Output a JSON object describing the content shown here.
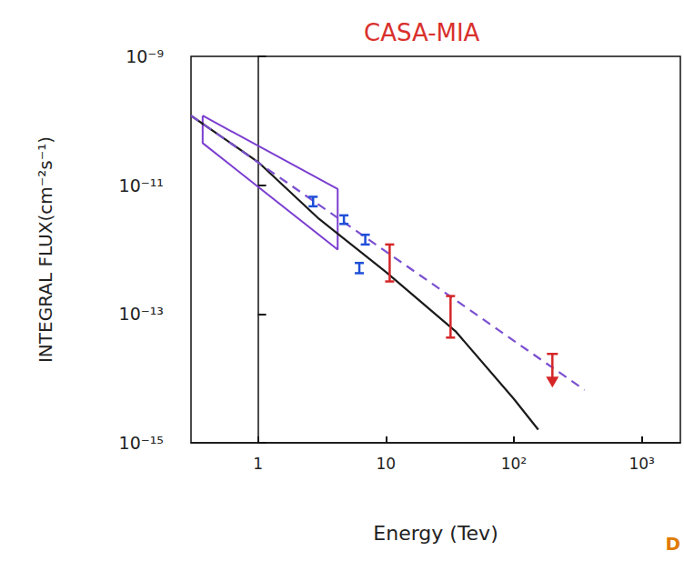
{
  "chart_data": {
    "type": "line",
    "title": "CASA-MIA",
    "x_label": "Energy (Tev)",
    "y_label": "INTEGRAL FLUX(cm⁻²s⁻¹)",
    "log": true,
    "grid": false,
    "xlim": [
      0.3,
      2000
    ],
    "xticks": [
      1,
      10,
      {
        "value": 100,
        "label": "10²"
      },
      {
        "value": 1000,
        "label": "10³"
      }
    ],
    "ylim": [
      1e-15,
      1e-09
    ],
    "yticks": [
      {
        "value": 1e-09,
        "label": "10⁻⁹"
      },
      {
        "value": 1e-11,
        "label": "10⁻¹¹"
      },
      {
        "value": 1e-13,
        "label": "10⁻¹³"
      },
      {
        "value": 1e-15,
        "label": "10⁻¹⁵"
      }
    ],
    "series": [
      {
        "type": "line",
        "color": "#1a1a1a",
        "line_style": "solid",
        "x": [
          0.3,
          1,
          3,
          10,
          35,
          100,
          155
        ],
        "values": [
          1.2e-10,
          2.3e-11,
          3e-12,
          4.5e-13,
          5.4e-14,
          4.8e-15,
          1.6e-15
        ]
      },
      {
        "type": "line",
        "color": "#7b4fd0",
        "line_style": "dashed",
        "x": [
          0.3,
          357
        ],
        "values": [
          1.2e-10,
          6.6e-15
        ]
      },
      {
        "type": "band",
        "color": "#7b3fd0",
        "x": [
          0.37,
          4.2
        ],
        "upper": [
          1.2e-10,
          8.7e-12
        ],
        "lower": [
          4.5e-11,
          1e-12
        ]
      },
      {
        "type": "errorbar",
        "color": "#1f4fd8",
        "x": [
          2.7,
          4.7,
          6.9,
          6.2
        ],
        "low": [
          4.7e-12,
          2.5e-12,
          1.2e-12,
          4.3e-13
        ],
        "high": [
          6.6e-12,
          3.4e-12,
          1.7e-12,
          6.2e-13
        ]
      },
      {
        "type": "errorbar",
        "color": "#d62728",
        "x": [
          10.7,
          32
        ],
        "low": [
          3.2e-13,
          4.3e-14
        ],
        "high": [
          1.2e-12,
          1.9e-13
        ]
      },
      {
        "type": "upper_limit",
        "color": "#d62728",
        "x": [
          200
        ],
        "values": [
          2.4e-14
        ]
      }
    ],
    "annotations": [
      {
        "text": "D",
        "color": "#e07b00"
      }
    ]
  }
}
